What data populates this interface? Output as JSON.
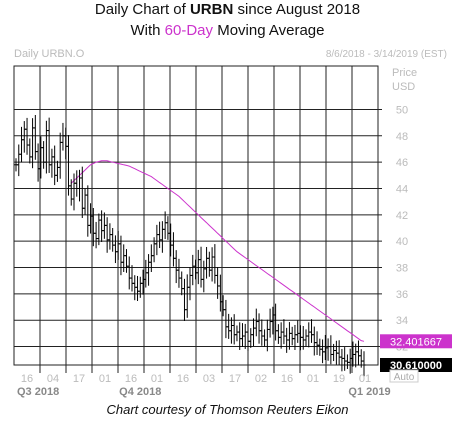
{
  "title": {
    "line1_prefix": "Daily Chart of ",
    "line1_ticker": "URBN",
    "line1_suffix": " since August 2018",
    "line2_prefix": "With ",
    "line2_highlight": "60-Day",
    "line2_suffix": " Moving Average"
  },
  "caption": "Chart courtesy of Thomson Reuters Eikon",
  "chart_data": {
    "type": "bar",
    "style": "ohlc",
    "symbol_label": "Daily URBN.O",
    "date_range_label": "8/6/2018 - 3/14/2019 (EST)",
    "ylabel": "Price",
    "yunit": "USD",
    "ylim": [
      30.6,
      53.3
    ],
    "yticks": [
      32,
      34,
      36,
      38,
      40,
      42,
      44,
      46,
      48,
      50
    ],
    "grid": true,
    "auto_label": "Auto",
    "colors": {
      "price": "#000000",
      "ma": "#cc33cc",
      "grid": "#222222",
      "axis_text": "#bbbbbb",
      "quarter_text": "#888888"
    },
    "x_ticks": [
      "16",
      "04",
      "17",
      "01",
      "16",
      "01",
      "16",
      "03",
      "17",
      "02",
      "16",
      "01",
      "19",
      "01"
    ],
    "quarter_labels": [
      {
        "label": "Q3 2018",
        "index": 8
      },
      {
        "label": "Q4 2018",
        "index": 45
      },
      {
        "label": "Q1 2019",
        "index": 128
      }
    ],
    "price_series": [
      45.8,
      46.6,
      47.7,
      48.5,
      47.3,
      46.4,
      48.6,
      46.8,
      45.5,
      47.1,
      46.0,
      48.4,
      45.8,
      46.4,
      45.0,
      45.6,
      47.5,
      48.0,
      47.2,
      44.2,
      43.2,
      44.4,
      44.0,
      44.8,
      42.5,
      43.5,
      41.2,
      41.9,
      40.6,
      40.2,
      41.6,
      40.8,
      41.2,
      40.1,
      40.5,
      39.7,
      39.2,
      39.8,
      38.4,
      38.9,
      38.1,
      37.2,
      36.8,
      36.5,
      36.2,
      36.8,
      37.1,
      37.6,
      38.4,
      38.9,
      39.8,
      40.5,
      40.1,
      40.9,
      41.4,
      40.6,
      39.7,
      38.7,
      37.8,
      37.2,
      36.4,
      34.8,
      36.5,
      37.4,
      38.1,
      37.6,
      38.6,
      37.1,
      37.9,
      38.7,
      37.8,
      38.8,
      37.4,
      36.6,
      35.4,
      34.8,
      33.5,
      33.2,
      33.6,
      32.9,
      33.1,
      32.6,
      32.8,
      33.1,
      32.4,
      32.9,
      33.4,
      33.9,
      33.2,
      32.8,
      32.5,
      33.3,
      33.9,
      34.4,
      33.2,
      32.7,
      33.1,
      32.8,
      32.5,
      33.0,
      32.6,
      32.9,
      33.0,
      32.7,
      32.5,
      32.8,
      33.1,
      32.9,
      32.3,
      32.1,
      31.8,
      31.6,
      31.9,
      32.0,
      31.4,
      31.7,
      31.5,
      31.2,
      31.1,
      30.9,
      30.8,
      31.1,
      31.4,
      31.6,
      31.3,
      30.9,
      30.6
    ],
    "ma_series": [
      44.4,
      44.6,
      44.8,
      45.0,
      45.2,
      45.4,
      45.6,
      45.8,
      45.9,
      46.0,
      46.05,
      46.1,
      46.1,
      46.1,
      46.05,
      46.0,
      45.95,
      45.9,
      45.85,
      45.8,
      45.75,
      45.7,
      45.6,
      45.5,
      45.4,
      45.3,
      45.2,
      45.1,
      45.0,
      44.9,
      44.75,
      44.6,
      44.45,
      44.3,
      44.15,
      44.0,
      43.85,
      43.7,
      43.55,
      43.4,
      43.2,
      43.0,
      42.8,
      42.6,
      42.4,
      42.2,
      42.0,
      41.8,
      41.6,
      41.4,
      41.2,
      41.0,
      40.8,
      40.6,
      40.4,
      40.2,
      40.0,
      39.8,
      39.6,
      39.4,
      39.2,
      39.05,
      38.9,
      38.75,
      38.6,
      38.45,
      38.3,
      38.15,
      38.0,
      37.85,
      37.7,
      37.55,
      37.4,
      37.25,
      37.1,
      36.95,
      36.8,
      36.65,
      36.5,
      36.35,
      36.2,
      36.05,
      35.9,
      35.75,
      35.6,
      35.45,
      35.3,
      35.15,
      35.0,
      34.85,
      34.7,
      34.55,
      34.4,
      34.25,
      34.1,
      33.95,
      33.8,
      33.65,
      33.5,
      33.35,
      33.2,
      33.05,
      32.9,
      32.75,
      32.6,
      32.45,
      32.4
    ],
    "last_ma_label": "32.401667",
    "last_price_label": "30.610000"
  }
}
